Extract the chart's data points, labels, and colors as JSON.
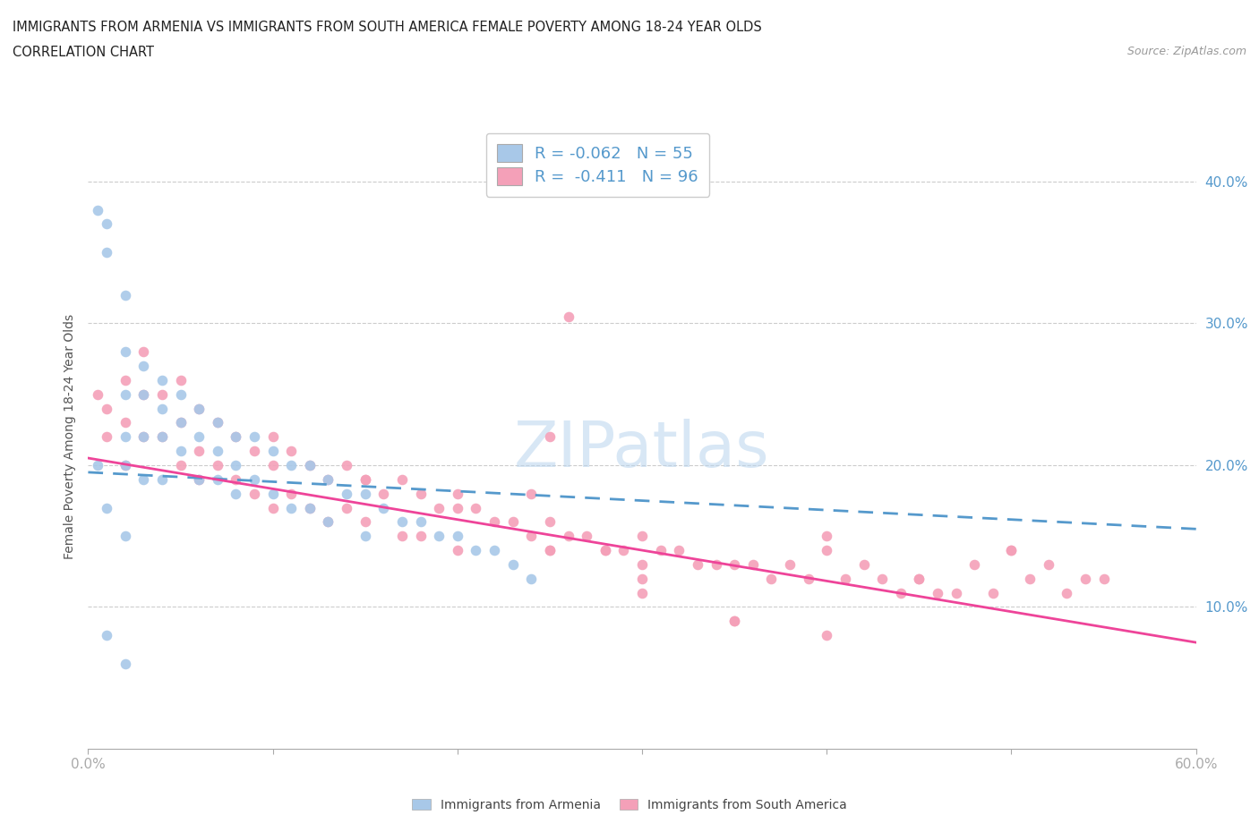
{
  "title_line1": "IMMIGRANTS FROM ARMENIA VS IMMIGRANTS FROM SOUTH AMERICA FEMALE POVERTY AMONG 18-24 YEAR OLDS",
  "title_line2": "CORRELATION CHART",
  "source_text": "Source: ZipAtlas.com",
  "ylabel": "Female Poverty Among 18-24 Year Olds",
  "xlim": [
    0.0,
    0.6
  ],
  "ylim": [
    0.0,
    0.44
  ],
  "color_armenia": "#a8c8e8",
  "color_south_america": "#f4a0b8",
  "color_trend_armenia": "#5599cc",
  "color_trend_south_america": "#ee4499",
  "watermark_text": "ZIPatlas",
  "legend_R_armenia": "-0.062",
  "legend_N_armenia": "55",
  "legend_R_south_america": "-0.411",
  "legend_N_south_america": "96",
  "arm_trend_x0": 0.0,
  "arm_trend_x1": 0.6,
  "arm_trend_y0": 0.195,
  "arm_trend_y1": 0.155,
  "sa_trend_x0": 0.0,
  "sa_trend_x1": 0.6,
  "sa_trend_y0": 0.205,
  "sa_trend_y1": 0.075,
  "armenia_x": [
    0.005,
    0.01,
    0.01,
    0.02,
    0.02,
    0.02,
    0.02,
    0.02,
    0.03,
    0.03,
    0.03,
    0.03,
    0.04,
    0.04,
    0.04,
    0.04,
    0.05,
    0.05,
    0.05,
    0.06,
    0.06,
    0.06,
    0.07,
    0.07,
    0.07,
    0.08,
    0.08,
    0.08,
    0.09,
    0.09,
    0.1,
    0.1,
    0.11,
    0.11,
    0.12,
    0.12,
    0.13,
    0.13,
    0.14,
    0.15,
    0.15,
    0.16,
    0.17,
    0.18,
    0.19,
    0.2,
    0.21,
    0.22,
    0.23,
    0.24,
    0.005,
    0.01,
    0.02,
    0.01,
    0.02
  ],
  "armenia_y": [
    0.38,
    0.37,
    0.35,
    0.32,
    0.28,
    0.25,
    0.22,
    0.2,
    0.27,
    0.25,
    0.22,
    0.19,
    0.26,
    0.24,
    0.22,
    0.19,
    0.25,
    0.23,
    0.21,
    0.24,
    0.22,
    0.19,
    0.23,
    0.21,
    0.19,
    0.22,
    0.2,
    0.18,
    0.22,
    0.19,
    0.21,
    0.18,
    0.2,
    0.17,
    0.2,
    0.17,
    0.19,
    0.16,
    0.18,
    0.18,
    0.15,
    0.17,
    0.16,
    0.16,
    0.15,
    0.15,
    0.14,
    0.14,
    0.13,
    0.12,
    0.2,
    0.17,
    0.15,
    0.08,
    0.06
  ],
  "sa_x": [
    0.005,
    0.01,
    0.01,
    0.02,
    0.02,
    0.02,
    0.03,
    0.03,
    0.03,
    0.04,
    0.04,
    0.05,
    0.05,
    0.05,
    0.06,
    0.06,
    0.06,
    0.07,
    0.07,
    0.08,
    0.08,
    0.09,
    0.09,
    0.1,
    0.1,
    0.1,
    0.11,
    0.11,
    0.12,
    0.12,
    0.13,
    0.13,
    0.14,
    0.14,
    0.15,
    0.15,
    0.16,
    0.17,
    0.17,
    0.18,
    0.18,
    0.19,
    0.2,
    0.2,
    0.21,
    0.22,
    0.23,
    0.24,
    0.25,
    0.25,
    0.26,
    0.27,
    0.28,
    0.29,
    0.3,
    0.3,
    0.31,
    0.32,
    0.33,
    0.34,
    0.35,
    0.36,
    0.37,
    0.38,
    0.39,
    0.4,
    0.41,
    0.42,
    0.43,
    0.44,
    0.45,
    0.46,
    0.47,
    0.48,
    0.49,
    0.5,
    0.51,
    0.52,
    0.53,
    0.54,
    0.26,
    0.25,
    0.24,
    0.28,
    0.3,
    0.35,
    0.4,
    0.45,
    0.5,
    0.55,
    0.15,
    0.2,
    0.25,
    0.3,
    0.35,
    0.4
  ],
  "sa_y": [
    0.25,
    0.24,
    0.22,
    0.26,
    0.23,
    0.2,
    0.28,
    0.25,
    0.22,
    0.25,
    0.22,
    0.26,
    0.23,
    0.2,
    0.24,
    0.21,
    0.19,
    0.23,
    0.2,
    0.22,
    0.19,
    0.21,
    0.18,
    0.22,
    0.2,
    0.17,
    0.21,
    0.18,
    0.2,
    0.17,
    0.19,
    0.16,
    0.2,
    0.17,
    0.19,
    0.16,
    0.18,
    0.19,
    0.15,
    0.18,
    0.15,
    0.17,
    0.18,
    0.14,
    0.17,
    0.16,
    0.16,
    0.15,
    0.16,
    0.14,
    0.15,
    0.15,
    0.14,
    0.14,
    0.15,
    0.13,
    0.14,
    0.14,
    0.13,
    0.13,
    0.13,
    0.13,
    0.12,
    0.13,
    0.12,
    0.14,
    0.12,
    0.13,
    0.12,
    0.11,
    0.12,
    0.11,
    0.11,
    0.13,
    0.11,
    0.14,
    0.12,
    0.13,
    0.11,
    0.12,
    0.305,
    0.22,
    0.18,
    0.14,
    0.11,
    0.09,
    0.15,
    0.12,
    0.14,
    0.12,
    0.19,
    0.17,
    0.14,
    0.12,
    0.09,
    0.08
  ]
}
